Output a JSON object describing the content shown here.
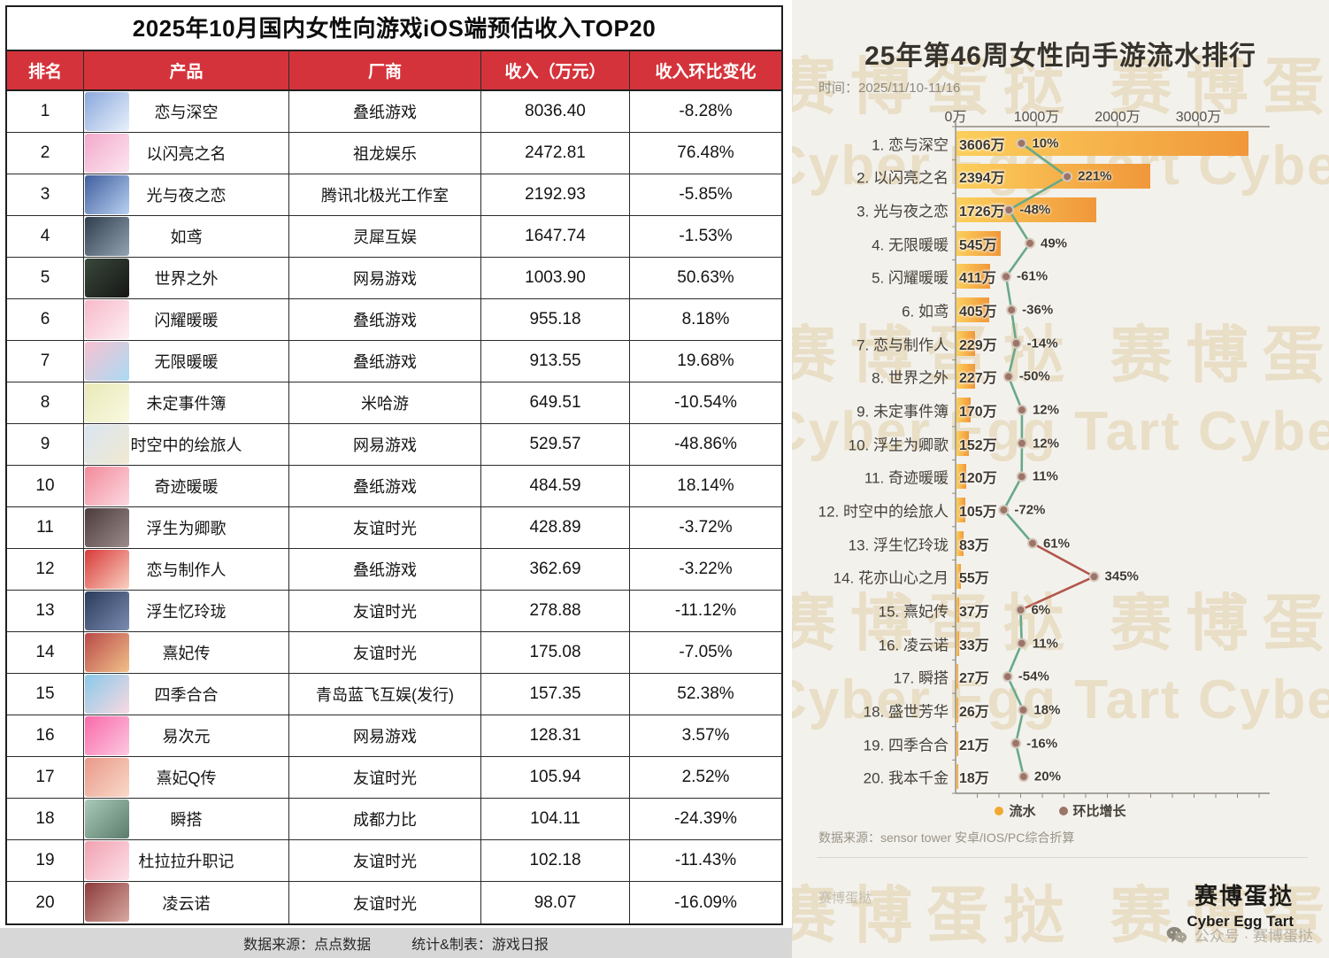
{
  "table": {
    "title": "2025年10月国内女性向游戏iOS端预估收入TOP20",
    "columns": [
      "排名",
      "产品",
      "厂商",
      "收入（万元）",
      "收入环比变化"
    ],
    "rows": [
      {
        "rank": "1",
        "product": "恋与深空",
        "vendor": "叠纸游戏",
        "revenue": "8036.40",
        "change": "-8.28%",
        "icon_colors": [
          "#8aa8dc",
          "#e9f1fb"
        ]
      },
      {
        "rank": "2",
        "product": "以闪亮之名",
        "vendor": "祖龙娱乐",
        "revenue": "2472.81",
        "change": "76.48%",
        "icon_colors": [
          "#f3a9cb",
          "#fce6f1"
        ]
      },
      {
        "rank": "3",
        "product": "光与夜之恋",
        "vendor": "腾讯北极光工作室",
        "revenue": "2192.93",
        "change": "-5.85%",
        "icon_colors": [
          "#3f5e9e",
          "#b9d1f1"
        ]
      },
      {
        "rank": "4",
        "product": "如鸢",
        "vendor": "灵犀互娱",
        "revenue": "1647.74",
        "change": "-1.53%",
        "icon_colors": [
          "#2e3e4e",
          "#93a3b1"
        ]
      },
      {
        "rank": "5",
        "product": "世界之外",
        "vendor": "网易游戏",
        "revenue": "1003.90",
        "change": "50.63%",
        "icon_colors": [
          "#39483a",
          "#161616"
        ]
      },
      {
        "rank": "6",
        "product": "闪耀暖暖",
        "vendor": "叠纸游戏",
        "revenue": "955.18",
        "change": "8.18%",
        "icon_colors": [
          "#f8b9ca",
          "#fdeff3"
        ]
      },
      {
        "rank": "7",
        "product": "无限暖暖",
        "vendor": "叠纸游戏",
        "revenue": "913.55",
        "change": "19.68%",
        "icon_colors": [
          "#f7c2d2",
          "#aadaf2"
        ]
      },
      {
        "rank": "8",
        "product": "未定事件簿",
        "vendor": "米哈游",
        "revenue": "649.51",
        "change": "-10.54%",
        "icon_colors": [
          "#e9e9b9",
          "#f9f9e1"
        ]
      },
      {
        "rank": "9",
        "product": "时空中的绘旅人",
        "vendor": "网易游戏",
        "revenue": "529.57",
        "change": "-48.86%",
        "icon_colors": [
          "#d9e5f1",
          "#f1e9d1"
        ]
      },
      {
        "rank": "10",
        "product": "奇迹暖暖",
        "vendor": "叠纸游戏",
        "revenue": "484.59",
        "change": "18.14%",
        "icon_colors": [
          "#f28a9a",
          "#fcd9e1"
        ]
      },
      {
        "rank": "11",
        "product": "浮生为卿歌",
        "vendor": "友谊时光",
        "revenue": "428.89",
        "change": "-3.72%",
        "icon_colors": [
          "#4b3b3b",
          "#9b8b8b"
        ]
      },
      {
        "rank": "12",
        "product": "恋与制作人",
        "vendor": "叠纸游戏",
        "revenue": "362.69",
        "change": "-3.22%",
        "icon_colors": [
          "#d93a3a",
          "#f9d1c1"
        ]
      },
      {
        "rank": "13",
        "product": "浮生忆玲珑",
        "vendor": "友谊时光",
        "revenue": "278.88",
        "change": "-11.12%",
        "icon_colors": [
          "#2b3b5b",
          "#7b8bb1"
        ]
      },
      {
        "rank": "14",
        "product": "熹妃传",
        "vendor": "友谊时光",
        "revenue": "175.08",
        "change": "-7.05%",
        "icon_colors": [
          "#b94949",
          "#f1c189"
        ]
      },
      {
        "rank": "15",
        "product": "四季合合",
        "vendor": "青岛蓝飞互娱(发行)",
        "revenue": "157.35",
        "change": "52.38%",
        "icon_colors": [
          "#89c9e9",
          "#f9d9e1"
        ]
      },
      {
        "rank": "16",
        "product": "易次元",
        "vendor": "网易游戏",
        "revenue": "128.31",
        "change": "3.57%",
        "icon_colors": [
          "#f969a9",
          "#fcc9e1"
        ]
      },
      {
        "rank": "17",
        "product": "熹妃Q传",
        "vendor": "友谊时光",
        "revenue": "105.94",
        "change": "2.52%",
        "icon_colors": [
          "#e99989",
          "#f9d9c9"
        ]
      },
      {
        "rank": "18",
        "product": "瞬搭",
        "vendor": "成都力比",
        "revenue": "104.11",
        "change": "-24.39%",
        "icon_colors": [
          "#a9c9b9",
          "#5b7b6b"
        ]
      },
      {
        "rank": "19",
        "product": "杜拉拉升职记",
        "vendor": "友谊时光",
        "revenue": "102.18",
        "change": "-11.43%",
        "icon_colors": [
          "#f1a1b1",
          "#fce1e9"
        ]
      },
      {
        "rank": "20",
        "product": "凌云诺",
        "vendor": "友谊时光",
        "revenue": "98.07",
        "change": "-16.09%",
        "icon_colors": [
          "#8b3b3b",
          "#d9a9a1"
        ]
      }
    ],
    "footer": {
      "source": "数据来源：点点数据",
      "maker": "统计&制表：游戏日报"
    }
  },
  "chart": {
    "title": "25年第46周女性向手游流水排行",
    "time_label": "时间：2025/11/10-11/16",
    "source": "数据来源：sensor tower 安卓/IOS/PC综合折算",
    "legend": [
      {
        "label": "流水",
        "color": "#f0a830"
      },
      {
        "label": "环比增长",
        "color": "#9c7568"
      }
    ]
  },
  "chart_data": {
    "type": "bar",
    "orientation": "horizontal",
    "title": "25年第46周女性向手游流水排行",
    "subtitle": "时间：2025/11/10-11/16",
    "categories": [
      "1. 恋与深空",
      "2. 以闪亮之名",
      "3. 光与夜之恋",
      "4. 无限暖暖",
      "5. 闪耀暖暖",
      "6. 如鸢",
      "7. 恋与制作人",
      "8. 世界之外",
      "9. 未定事件簿",
      "10. 浮生为卿歌",
      "11. 奇迹暖暖",
      "12. 时空中的绘旅人",
      "13. 浮生忆玲珑",
      "14. 花亦山心之月",
      "15. 熹妃传",
      "16. 凌云诺",
      "17. 瞬搭",
      "18. 盛世芳华",
      "19. 四季合合",
      "20. 我本千金"
    ],
    "series": [
      {
        "name": "流水",
        "unit": "万",
        "type": "bar",
        "values": [
          3606,
          2394,
          1726,
          545,
          411,
          405,
          229,
          227,
          170,
          152,
          120,
          105,
          83,
          55,
          37,
          33,
          27,
          26,
          21,
          18
        ]
      },
      {
        "name": "环比增长",
        "unit": "%",
        "type": "line",
        "values": [
          10,
          221,
          -48,
          49,
          -61,
          -36,
          -14,
          -50,
          12,
          12,
          11,
          -72,
          61,
          345,
          6,
          11,
          -54,
          18,
          -16,
          20
        ]
      }
    ],
    "x_axis": {
      "tick_labels": [
        "0万",
        "1000万",
        "2000万",
        "3000万"
      ],
      "tick_values": [
        0,
        1000,
        2000,
        3000
      ],
      "max": 3700
    },
    "grid": false,
    "legend_position": "bottom"
  },
  "branding": {
    "name_cn": "赛博蛋挞",
    "name_en": "Cyber Egg Tart",
    "wechat": "公众号 · 赛博蛋挞",
    "watermark_small": "赛博蛋挞"
  },
  "watermark": {
    "cn": "赛博蛋挞",
    "en": "Cyber Egg Tart"
  },
  "colors": {
    "table_header_bg": "#d5333b",
    "bar_gradient": [
      "#fccf5c",
      "#f0973a"
    ],
    "line_green": "#68a98a",
    "line_red": "#b2564c",
    "dot_fill": "#9c7568",
    "panel_bg": "#f3f1ec"
  }
}
